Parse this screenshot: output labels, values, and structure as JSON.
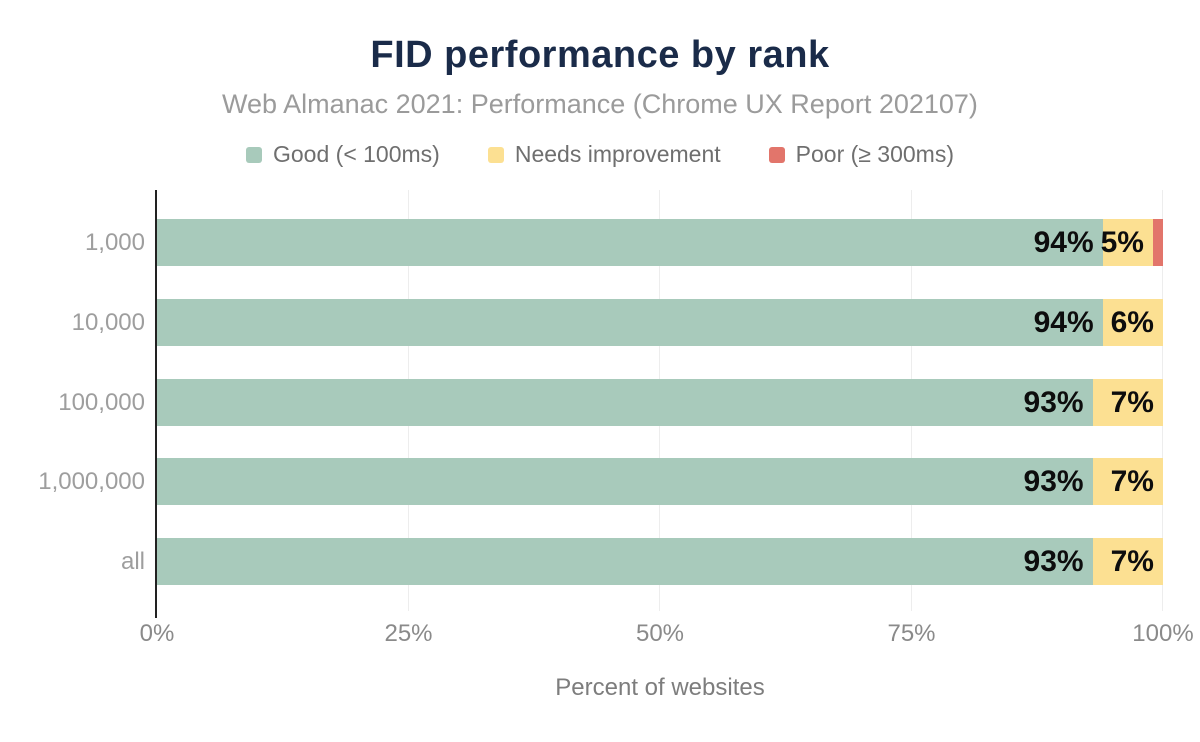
{
  "title": "FID performance by rank",
  "subtitle": "Web Almanac 2021: Performance (Chrome UX Report 202107)",
  "legend": [
    {
      "label": "Good (< 100ms)",
      "color": "#a8cabb"
    },
    {
      "label": "Needs improvement",
      "color": "#fce092"
    },
    {
      "label": "Poor (≥ 300ms)",
      "color": "#e2756b"
    }
  ],
  "chart_data": {
    "type": "bar",
    "orientation": "horizontal",
    "stacked": true,
    "title": "FID performance by rank",
    "subtitle": "Web Almanac 2021: Performance (Chrome UX Report 202107)",
    "categories": [
      "1,000",
      "10,000",
      "100,000",
      "1,000,000",
      "all"
    ],
    "series": [
      {
        "name": "Good (< 100ms)",
        "color": "#a8cabb",
        "values": [
          94,
          94,
          93,
          93,
          93
        ]
      },
      {
        "name": "Needs improvement",
        "color": "#fce092",
        "values": [
          5,
          6,
          7,
          7,
          7
        ]
      },
      {
        "name": "Poor (≥ 300ms)",
        "color": "#e2756b",
        "values": [
          1,
          0,
          0,
          0,
          0
        ]
      }
    ],
    "data_labels": [
      [
        "94%",
        "5%",
        ""
      ],
      [
        "94%",
        "6%",
        ""
      ],
      [
        "93%",
        "7%",
        ""
      ],
      [
        "93%",
        "7%",
        ""
      ],
      [
        "93%",
        "7%",
        ""
      ]
    ],
    "xlabel": "Percent of websites",
    "ylabel": "",
    "x_ticks": [
      "0%",
      "25%",
      "50%",
      "75%",
      "100%"
    ],
    "x_tick_values": [
      0,
      25,
      50,
      75,
      100
    ],
    "xlim": [
      0,
      100
    ],
    "grid": true,
    "legend_position": "top"
  },
  "colors": {
    "title": "#1a2b49",
    "subtitle": "#9b9b9b",
    "y_label": "#9e9e9e",
    "x_tick": "#8a8a8a",
    "axis_title": "#7d7d7d",
    "data_label": "#0d0d0d",
    "axis_line": "#222222",
    "gridline": "#ededed",
    "background": "#ffffff"
  }
}
